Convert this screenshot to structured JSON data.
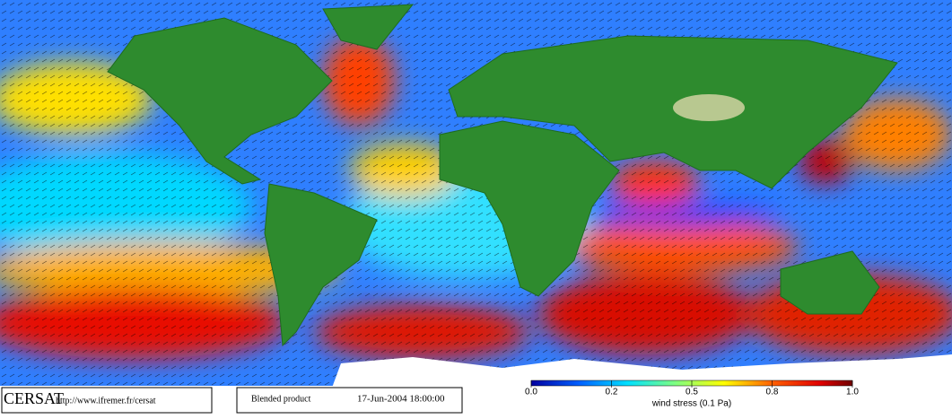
{
  "footer": {
    "logo": "CERSAT",
    "url": "http://www.ifremer.fr/cersat",
    "product": "Blended product",
    "timestamp": "17-Jun-2004 18:00:00"
  },
  "colorbar": {
    "ticks": [
      {
        "value": 0,
        "label": "0.0"
      },
      0.2,
      0.5,
      0.8,
      {
        "value": 1,
        "label": "1.0"
      }
    ],
    "label": "wind stress (0.1 Pa)"
  }
}
